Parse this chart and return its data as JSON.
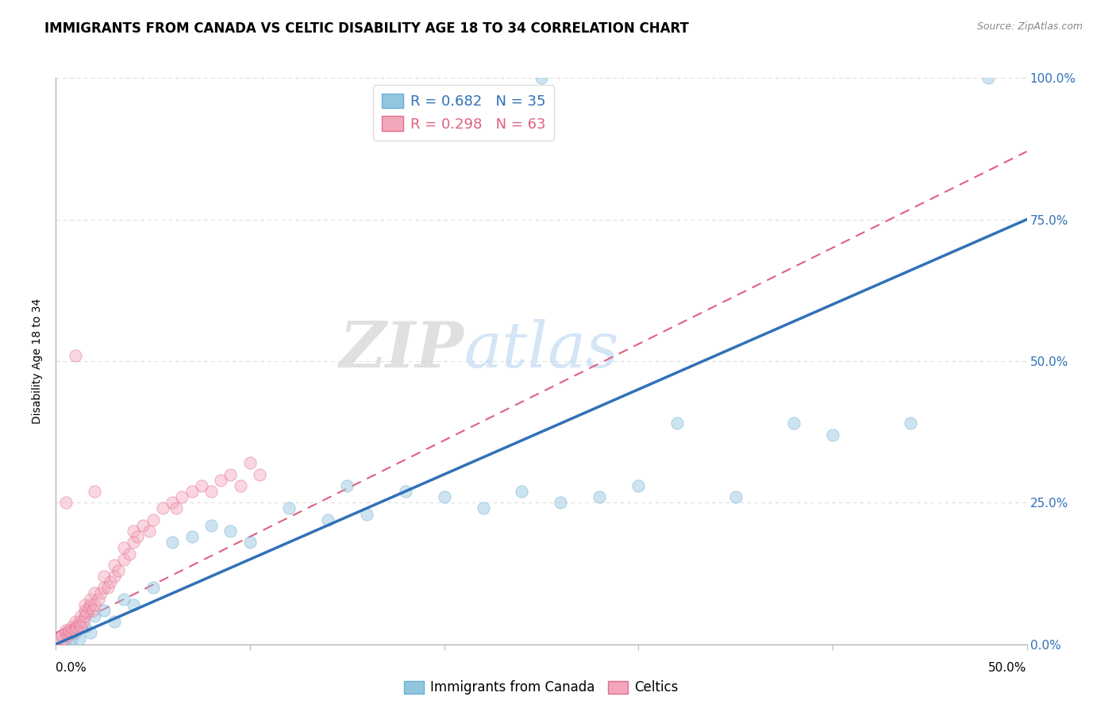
{
  "title": "IMMIGRANTS FROM CANADA VS CELTIC DISABILITY AGE 18 TO 34 CORRELATION CHART",
  "source": "Source: ZipAtlas.com",
  "ylabel_label": "Disability Age 18 to 34",
  "legend_blue_r": "R = 0.682",
  "legend_blue_n": "N = 35",
  "legend_pink_r": "R = 0.298",
  "legend_pink_n": "N = 63",
  "legend_label_blue": "Immigrants from Canada",
  "legend_label_pink": "Celtics",
  "blue_color": "#92c5de",
  "blue_edge_color": "#6baed6",
  "pink_color": "#f4a6bb",
  "pink_edge_color": "#e07090",
  "blue_line_color": "#3070b8",
  "pink_line_color": "#e06080",
  "watermark_zip": "ZIP",
  "watermark_atlas": "atlas",
  "blue_scatter_x": [
    0.005,
    0.008,
    0.01,
    0.012,
    0.015,
    0.018,
    0.02,
    0.025,
    0.03,
    0.035,
    0.04,
    0.05,
    0.06,
    0.07,
    0.08,
    0.09,
    0.1,
    0.12,
    0.14,
    0.15,
    0.16,
    0.18,
    0.2,
    0.22,
    0.24,
    0.26,
    0.28,
    0.3,
    0.32,
    0.35,
    0.38,
    0.4,
    0.44,
    0.48,
    0.25
  ],
  "blue_scatter_y": [
    0.005,
    0.01,
    0.02,
    0.01,
    0.03,
    0.02,
    0.05,
    0.06,
    0.04,
    0.08,
    0.07,
    0.1,
    0.18,
    0.19,
    0.21,
    0.2,
    0.18,
    0.24,
    0.22,
    0.28,
    0.23,
    0.27,
    0.26,
    0.24,
    0.27,
    0.25,
    0.26,
    0.28,
    0.39,
    0.26,
    0.39,
    0.37,
    0.39,
    1.0,
    1.0
  ],
  "pink_scatter_x": [
    0.002,
    0.003,
    0.004,
    0.005,
    0.005,
    0.006,
    0.007,
    0.007,
    0.008,
    0.008,
    0.009,
    0.01,
    0.01,
    0.01,
    0.011,
    0.012,
    0.012,
    0.013,
    0.013,
    0.014,
    0.015,
    0.015,
    0.015,
    0.016,
    0.017,
    0.018,
    0.018,
    0.019,
    0.02,
    0.02,
    0.022,
    0.023,
    0.025,
    0.025,
    0.027,
    0.028,
    0.03,
    0.03,
    0.032,
    0.035,
    0.035,
    0.038,
    0.04,
    0.04,
    0.042,
    0.045,
    0.048,
    0.05,
    0.055,
    0.06,
    0.062,
    0.065,
    0.07,
    0.075,
    0.08,
    0.085,
    0.09,
    0.095,
    0.1,
    0.105,
    0.005,
    0.01,
    0.02
  ],
  "pink_scatter_y": [
    0.01,
    0.015,
    0.01,
    0.02,
    0.025,
    0.015,
    0.02,
    0.025,
    0.02,
    0.03,
    0.025,
    0.03,
    0.025,
    0.04,
    0.03,
    0.035,
    0.04,
    0.03,
    0.05,
    0.04,
    0.05,
    0.06,
    0.07,
    0.055,
    0.065,
    0.07,
    0.08,
    0.06,
    0.07,
    0.09,
    0.08,
    0.09,
    0.1,
    0.12,
    0.1,
    0.11,
    0.12,
    0.14,
    0.13,
    0.15,
    0.17,
    0.16,
    0.18,
    0.2,
    0.19,
    0.21,
    0.2,
    0.22,
    0.24,
    0.25,
    0.24,
    0.26,
    0.27,
    0.28,
    0.27,
    0.29,
    0.3,
    0.28,
    0.32,
    0.3,
    0.25,
    0.51,
    0.27
  ],
  "xlim": [
    0.0,
    0.5
  ],
  "ylim": [
    0.0,
    1.0
  ],
  "xticks": [
    0.0,
    0.1,
    0.2,
    0.3,
    0.4,
    0.5
  ],
  "yticks": [
    0.0,
    0.25,
    0.5,
    0.75,
    1.0
  ],
  "ytick_labels_right": [
    "0.0%",
    "25.0%",
    "50.0%",
    "75.0%",
    "100.0%"
  ],
  "grid_color": "#dddddd",
  "title_fontsize": 12,
  "label_fontsize": 10,
  "tick_fontsize": 11,
  "scatter_size": 120,
  "scatter_alpha": 0.45,
  "background_color": "#ffffff",
  "blue_line_intercept": 0.0,
  "blue_line_slope": 1.5,
  "pink_line_intercept": 0.02,
  "pink_line_slope": 1.7
}
